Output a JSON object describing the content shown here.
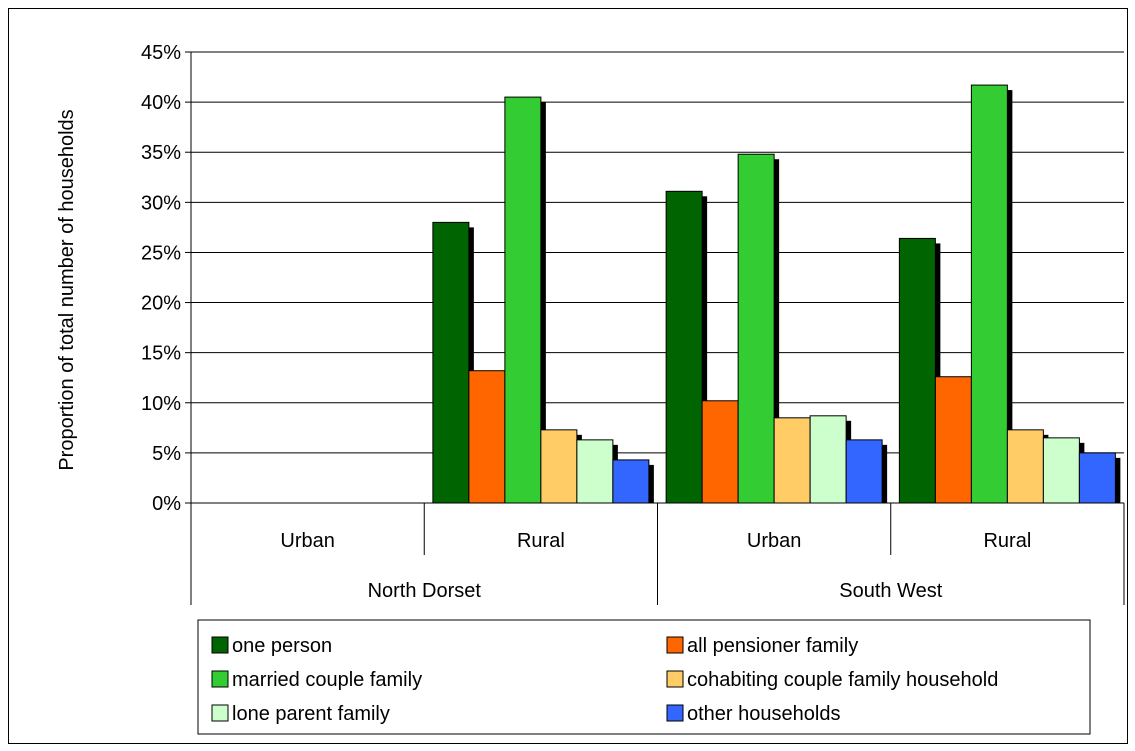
{
  "chart_data": {
    "type": "bar",
    "title": "",
    "ylabel": "Proportion of total number of households",
    "xlabel": "",
    "ylim": [
      0,
      45
    ],
    "yticks": [
      0,
      5,
      10,
      15,
      20,
      25,
      30,
      35,
      40,
      45
    ],
    "ytick_labels": [
      "0%",
      "5%",
      "10%",
      "15%",
      "20%",
      "25%",
      "30%",
      "35%",
      "40%",
      "45%"
    ],
    "grid": true,
    "legend_placement": "bottom",
    "categories": [
      "Urban",
      "Rural",
      "Urban",
      "Rural"
    ],
    "groups": [
      {
        "label": "North Dorset",
        "categories": [
          "Urban",
          "Rural"
        ]
      },
      {
        "label": "South West",
        "categories": [
          "Urban",
          "Rural"
        ]
      }
    ],
    "series": [
      {
        "name": "one person",
        "color": "#006400",
        "values": [
          null,
          28.0,
          31.1,
          26.4
        ]
      },
      {
        "name": "all pensioner family",
        "color": "#FF6600",
        "values": [
          null,
          13.2,
          10.2,
          12.6
        ]
      },
      {
        "name": "married couple family",
        "color": "#33CC33",
        "values": [
          null,
          40.5,
          34.8,
          41.7
        ]
      },
      {
        "name": "cohabiting couple family household",
        "color": "#FFCC66",
        "values": [
          null,
          7.3,
          8.5,
          7.3
        ]
      },
      {
        "name": "lone parent family",
        "color": "#CCFFCC",
        "values": [
          null,
          6.3,
          8.7,
          6.5
        ]
      },
      {
        "name": "other households",
        "color": "#3366FF",
        "values": [
          null,
          4.3,
          6.3,
          5.0
        ]
      }
    ]
  }
}
